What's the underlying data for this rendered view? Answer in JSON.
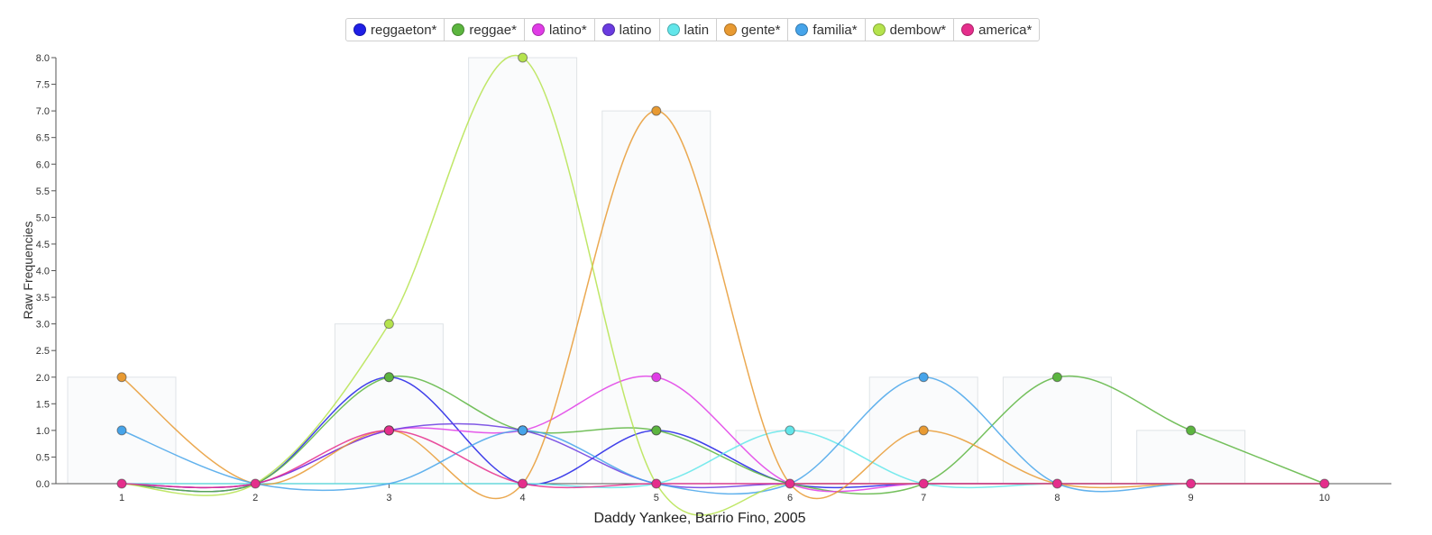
{
  "chart_data": {
    "type": "line",
    "xlabel": "Daddy Yankee, Barrio Fino, 2005",
    "ylabel": "Raw Frequencies",
    "x": [
      1,
      2,
      3,
      4,
      5,
      6,
      7,
      8,
      9,
      10
    ],
    "ylim": [
      0,
      8
    ],
    "y_ticks": [
      "0.0",
      "0.5",
      "1.0",
      "1.5",
      "2.0",
      "2.5",
      "3.0",
      "3.5",
      "4.0",
      "4.5",
      "5.0",
      "5.5",
      "6.0",
      "6.5",
      "7.0",
      "7.5",
      "8.0"
    ],
    "x_ticks": [
      "1",
      "2",
      "3",
      "4",
      "5",
      "6",
      "7",
      "8",
      "9",
      "10"
    ],
    "legend_position": "top-center",
    "series": [
      {
        "name": "reggaeton*",
        "color": "#1f1fe6",
        "values": [
          0,
          0,
          2,
          0,
          1,
          0,
          0,
          0,
          0,
          0
        ]
      },
      {
        "name": "reggae*",
        "color": "#5cb53f",
        "values": [
          0,
          0,
          2,
          1,
          1,
          0,
          0,
          2,
          1,
          0
        ]
      },
      {
        "name": "latino*",
        "color": "#e03ce6",
        "values": [
          0,
          0,
          1,
          1,
          2,
          0,
          0,
          0,
          0,
          0
        ]
      },
      {
        "name": "latino",
        "color": "#6a3be0",
        "values": [
          0,
          0,
          1,
          1,
          0,
          0,
          0,
          0,
          0,
          0
        ]
      },
      {
        "name": "latin",
        "color": "#62e6ea",
        "values": [
          0,
          0,
          0,
          0,
          0,
          1,
          0,
          0,
          0,
          0
        ]
      },
      {
        "name": "gente*",
        "color": "#e89a32",
        "values": [
          2,
          0,
          1,
          0,
          7,
          0,
          1,
          0,
          0,
          0
        ]
      },
      {
        "name": "familia*",
        "color": "#46a4ea",
        "values": [
          1,
          0,
          0,
          1,
          0,
          0,
          2,
          0,
          0,
          0
        ]
      },
      {
        "name": "dembow*",
        "color": "#b5e34d",
        "values": [
          0,
          0,
          3,
          8,
          0,
          0,
          0,
          0,
          0,
          0
        ]
      },
      {
        "name": "america*",
        "color": "#e52e8c",
        "values": [
          0,
          0,
          1,
          0,
          0,
          0,
          0,
          0,
          0,
          0
        ]
      }
    ],
    "bars": [
      2,
      0,
      3,
      8,
      7,
      1,
      2,
      2,
      1,
      0
    ]
  }
}
